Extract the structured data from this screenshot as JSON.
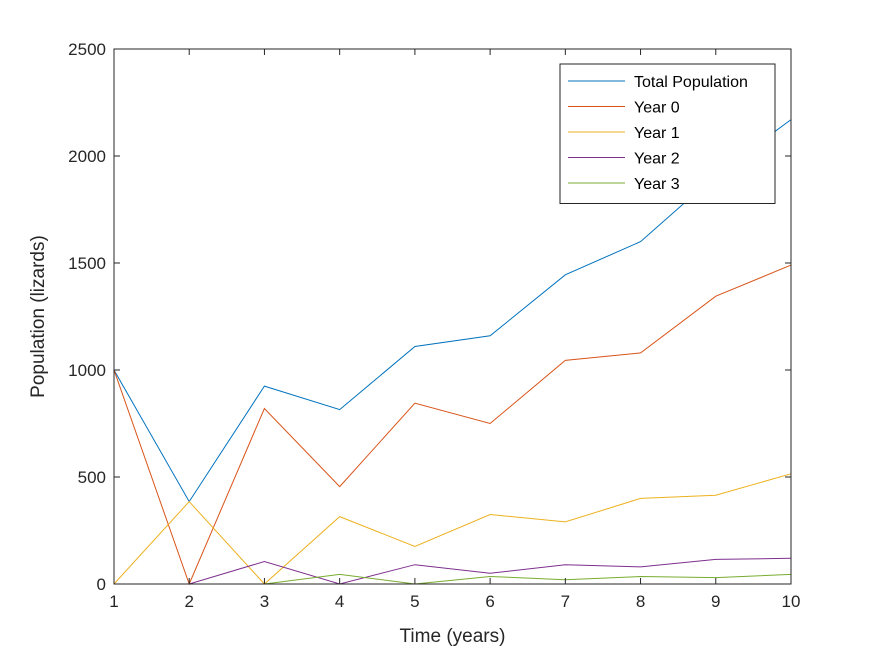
{
  "chart_data": {
    "type": "line",
    "title": "",
    "xlabel": "Time (years)",
    "ylabel": "Population (lizards)",
    "x": [
      1,
      2,
      3,
      4,
      5,
      6,
      7,
      8,
      9,
      10
    ],
    "xlim": [
      1,
      10
    ],
    "ylim": [
      0,
      2500
    ],
    "xticks": [
      1,
      2,
      3,
      4,
      5,
      6,
      7,
      8,
      9,
      10
    ],
    "yticks": [
      0,
      500,
      1000,
      1500,
      2000,
      2500
    ],
    "grid": false,
    "legend_position": "top-right",
    "series": [
      {
        "name": "Total Population",
        "color": "#0072bd",
        "values": [
          1000,
          385,
          925,
          815,
          1110,
          1160,
          1445,
          1600,
          1910,
          2170
        ]
      },
      {
        "name": "Year 0",
        "color": "#d95319",
        "values": [
          1000,
          0,
          820,
          455,
          845,
          750,
          1045,
          1080,
          1345,
          1490
        ]
      },
      {
        "name": "Year 1",
        "color": "#edb120",
        "values": [
          0,
          385,
          0,
          315,
          175,
          325,
          290,
          400,
          415,
          515
        ]
      },
      {
        "name": "Year 2",
        "color": "#7e2f8e",
        "values": [
          0,
          0,
          105,
          0,
          90,
          50,
          90,
          80,
          115,
          120
        ]
      },
      {
        "name": "Year 3",
        "color": "#77ac30",
        "values": [
          0,
          0,
          0,
          45,
          0,
          35,
          20,
          35,
          30,
          45
        ]
      }
    ]
  }
}
